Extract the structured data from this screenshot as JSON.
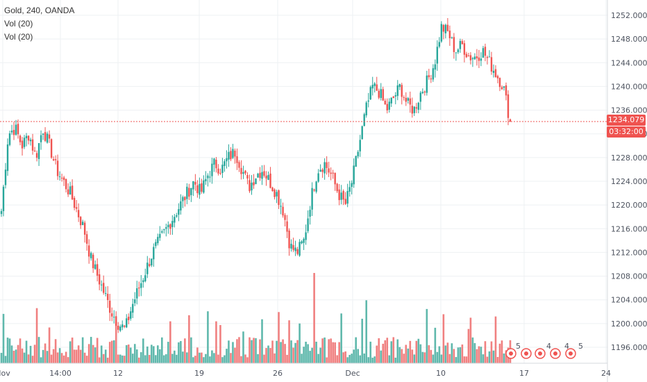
{
  "legend": {
    "symbol_line": "Gold, 240, OANDA",
    "indicator_1": "Vol (20)",
    "indicator_2": "Vol (20)"
  },
  "price_tag": {
    "last_price": "1234.079",
    "countdown": "03:32:00"
  },
  "colors": {
    "up": "#26a69a",
    "down": "#ef5350",
    "up_vol": "#5fb8ac",
    "down_vol": "#f08080",
    "grid": "#eef0f3",
    "price_line": "#ef5350"
  },
  "chart_data": {
    "type": "candlestick",
    "title": "Gold, 240, OANDA",
    "y_ticks": [
      "1252.000",
      "1248.000",
      "1244.000",
      "1240.000",
      "1236.000",
      "1232.000",
      "1228.000",
      "1224.000",
      "1220.000",
      "1216.000",
      "1212.000",
      "1208.000",
      "1204.000",
      "1200.000",
      "1196.000"
    ],
    "x_ticks": [
      "Nov",
      "14:00",
      "12",
      "19",
      "26",
      "Dec",
      "10",
      "17",
      "24"
    ],
    "ylim": [
      1193.5,
      1253.5
    ],
    "last_price": 1234.079,
    "grid": true,
    "events_markers": [
      "5",
      "4",
      "4",
      "5"
    ],
    "ohlc_anchor_closes": [
      1219,
      1232,
      1233,
      1230,
      1232,
      1228,
      1233,
      1230,
      1226,
      1224,
      1222,
      1219,
      1216,
      1211,
      1208,
      1205,
      1202,
      1200,
      1199,
      1203,
      1206,
      1209,
      1212,
      1214,
      1216,
      1218,
      1220,
      1222,
      1224,
      1222,
      1225,
      1227,
      1226,
      1228,
      1229,
      1226,
      1223,
      1225,
      1226,
      1224,
      1222,
      1219,
      1213,
      1212,
      1214,
      1221,
      1226,
      1227,
      1225,
      1222,
      1220,
      1224,
      1230,
      1236,
      1240,
      1239,
      1236,
      1238,
      1240,
      1237,
      1236,
      1239,
      1241,
      1244,
      1250,
      1249,
      1246,
      1247,
      1245,
      1245,
      1246,
      1244,
      1242,
      1240,
      1234
    ]
  }
}
